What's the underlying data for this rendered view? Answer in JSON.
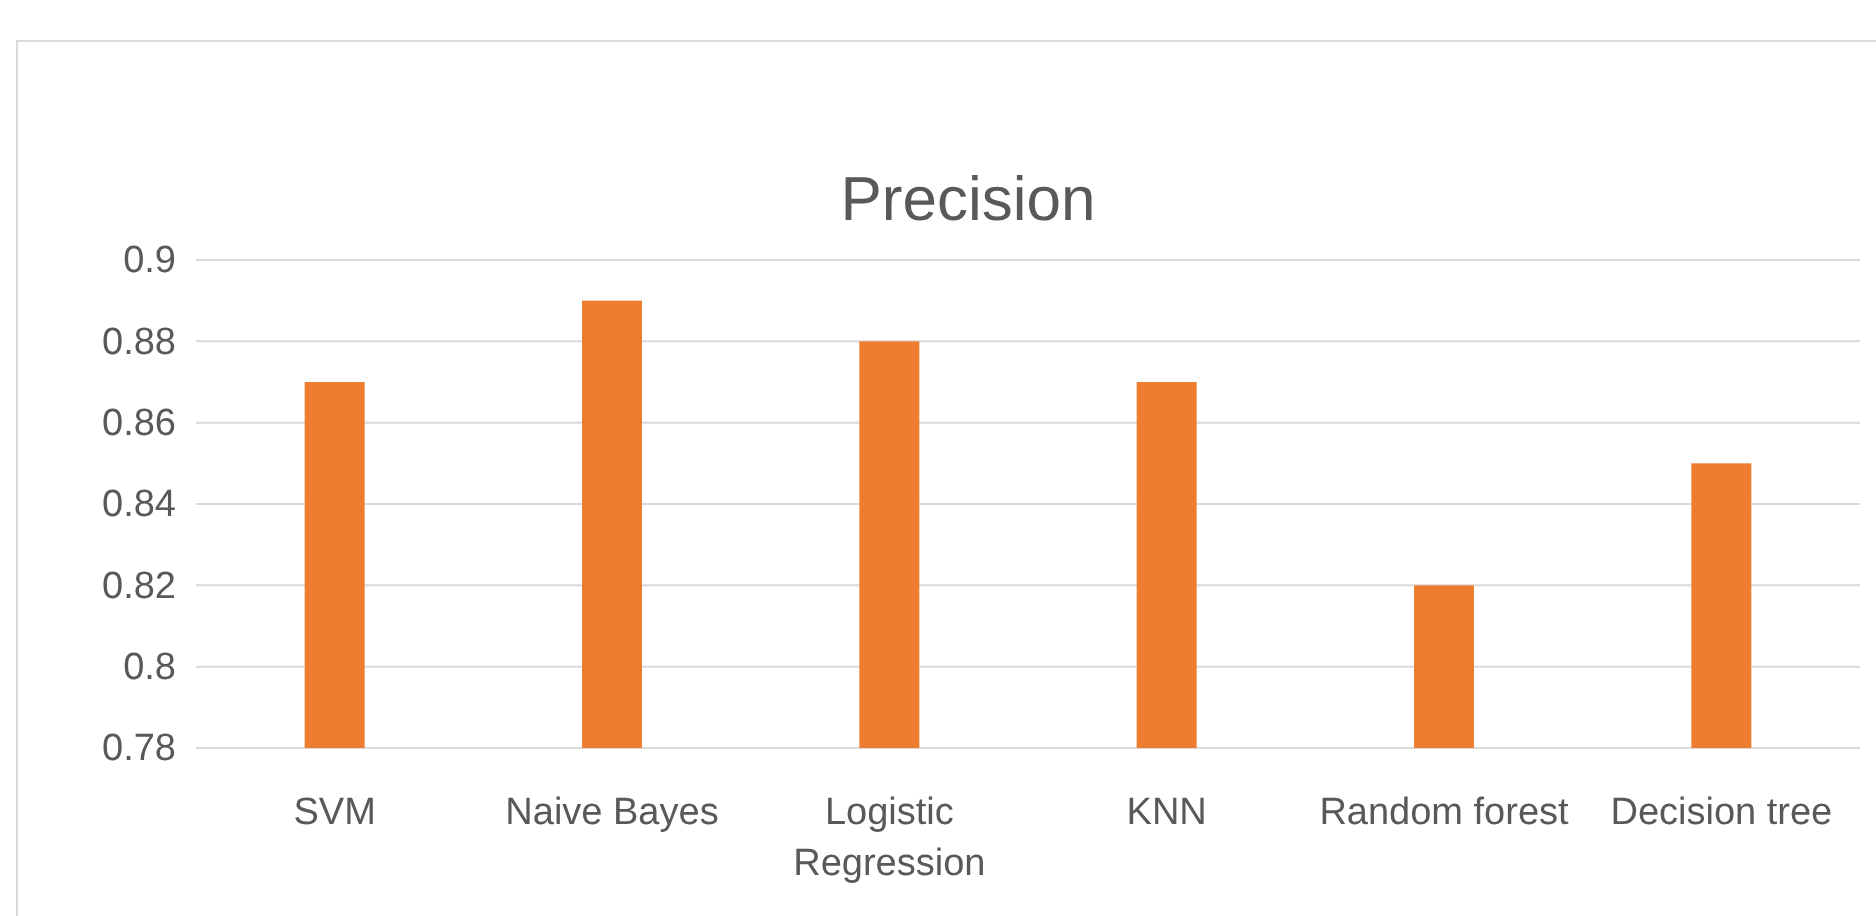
{
  "chart_data": {
    "type": "bar",
    "title": "Precision",
    "categories": [
      "SVM",
      "Naive Bayes",
      "Logistic Regression",
      "KNN",
      "Random forest",
      "Decision tree"
    ],
    "values": [
      0.87,
      0.89,
      0.88,
      0.87,
      0.82,
      0.85
    ],
    "color": "#ed7d31",
    "ylim": [
      0.78,
      0.9
    ],
    "yticks": [
      0.78,
      0.8,
      0.82,
      0.84,
      0.86,
      0.88,
      0.9
    ],
    "grid": "y"
  }
}
